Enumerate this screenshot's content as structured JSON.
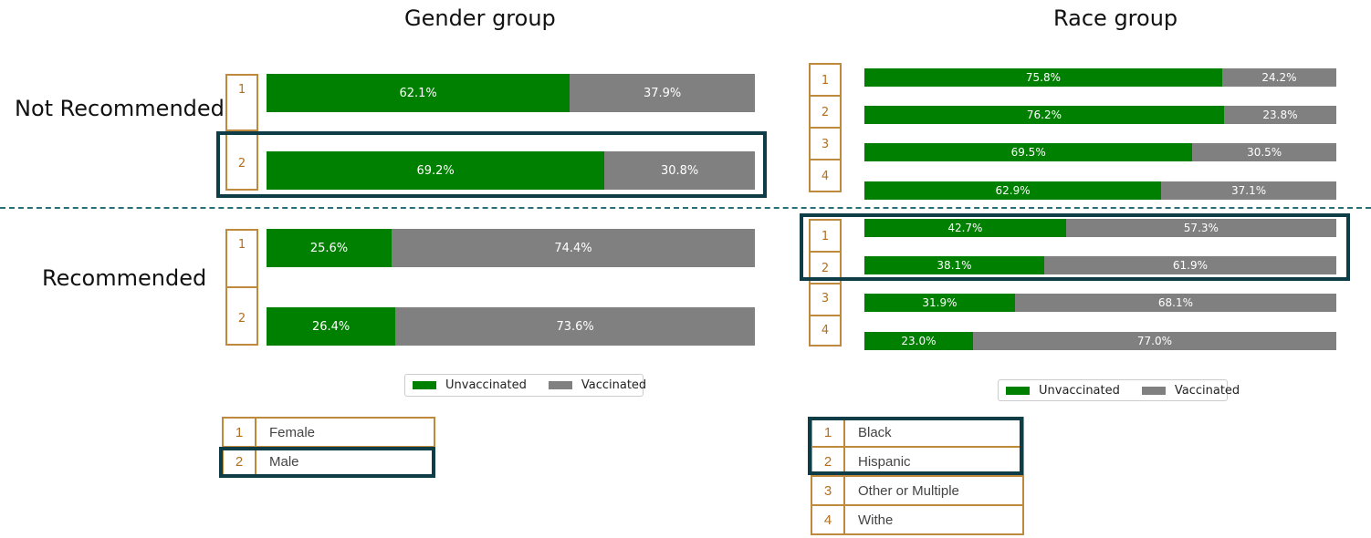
{
  "chart_data": [
    {
      "type": "bar",
      "stacked": "100%",
      "orientation": "horizontal",
      "title": "Gender group",
      "categories": [
        "1",
        "2",
        "1",
        "2"
      ],
      "row_groups": [
        "Not Recommended",
        "Not Recommended",
        "Recommended",
        "Recommended"
      ],
      "series": [
        {
          "name": "Unvaccinated",
          "values": [
            62.1,
            69.2,
            25.6,
            26.4
          ],
          "labels": [
            "62.1%",
            "69.2%",
            "25.6%",
            "26.4%"
          ]
        },
        {
          "name": "Vaccinated",
          "values": [
            37.9,
            30.8,
            74.4,
            73.6
          ],
          "labels": [
            "37.9%",
            "30.8%",
            "74.4%",
            "73.6%"
          ]
        }
      ],
      "xlim": [
        0,
        100
      ],
      "legend": "bottom-center"
    },
    {
      "type": "bar",
      "stacked": "100%",
      "orientation": "horizontal",
      "title": "Race group",
      "categories": [
        "1",
        "2",
        "3",
        "4",
        "1",
        "2",
        "3",
        "4"
      ],
      "row_groups": [
        "Not Recommended",
        "Not Recommended",
        "Not Recommended",
        "Not Recommended",
        "Recommended",
        "Recommended",
        "Recommended",
        "Recommended"
      ],
      "series": [
        {
          "name": "Unvaccinated",
          "values": [
            75.8,
            76.2,
            69.5,
            62.9,
            42.7,
            38.1,
            31.9,
            23.0
          ],
          "labels": [
            "75.8%",
            "76.2%",
            "69.5%",
            "62.9%",
            "42.7%",
            "38.1%",
            "31.9%",
            "23.0%"
          ]
        },
        {
          "name": "Vaccinated",
          "values": [
            24.2,
            23.8,
            30.5,
            37.1,
            57.3,
            61.9,
            68.1,
            77.0
          ],
          "labels": [
            "24.2%",
            "23.8%",
            "30.5%",
            "37.1%",
            "57.3%",
            "61.9%",
            "68.1%",
            "77.0%"
          ]
        }
      ],
      "xlim": [
        0,
        100
      ],
      "legend": "bottom-center"
    }
  ],
  "row_groups": {
    "not_recommended": "Not Recommended",
    "recommended": "Recommended"
  },
  "legend": {
    "unvaccinated": "Unvaccinated",
    "vaccinated": "Vaccinated"
  },
  "colors": {
    "unvaccinated": "#008000",
    "vaccinated": "#808080",
    "index_border": "#c08a3e",
    "highlight": "#0f3d47",
    "divider": "#2a6f78"
  },
  "gender_key": [
    {
      "num": "1",
      "label": "Female"
    },
    {
      "num": "2",
      "label": "Male"
    }
  ],
  "race_key": [
    {
      "num": "1",
      "label": "Black"
    },
    {
      "num": "2",
      "label": "Hispanic"
    },
    {
      "num": "3",
      "label": "Other or Multiple"
    },
    {
      "num": "4",
      "label": "Withe"
    }
  ]
}
